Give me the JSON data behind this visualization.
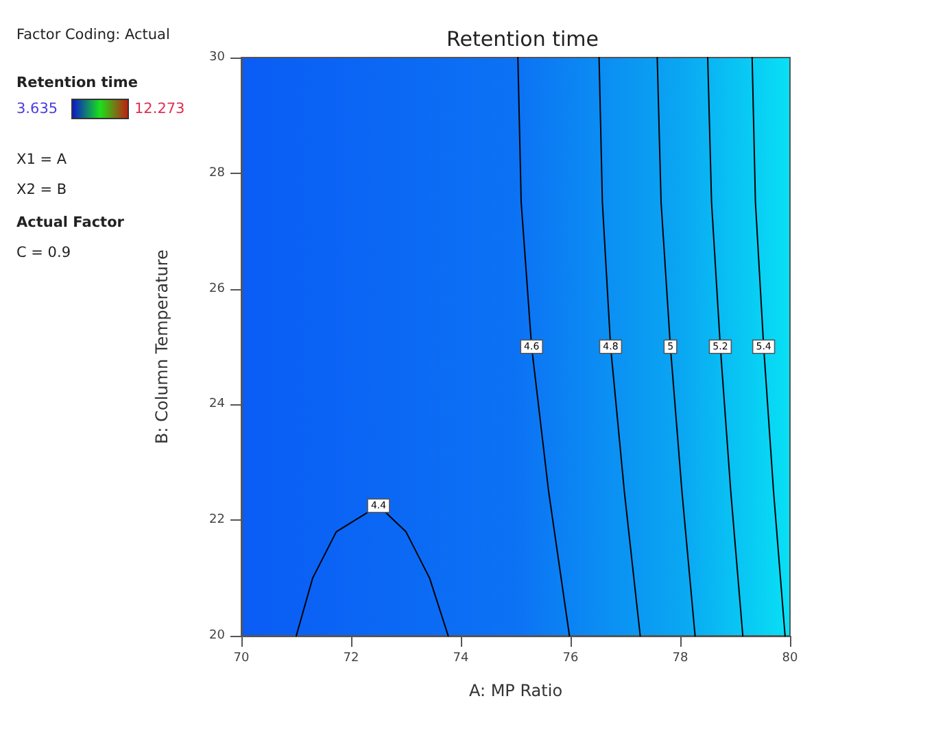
{
  "chart_data": {
    "type": "line",
    "title": "Retention time",
    "xlabel": "A: MP Ratio",
    "ylabel": "B: Column Temperature",
    "annotations": [
      "Factor Coding: Actual",
      "Retention time",
      "3.635",
      "12.273",
      "X1 = A",
      "X2 = B",
      "Actual Factor",
      "C = 0.9"
    ],
    "xlim": [
      70,
      80
    ],
    "xticks": [
      70,
      72,
      74,
      76,
      78,
      80
    ],
    "ylim": [
      20,
      30
    ],
    "yticks": [
      20,
      22,
      24,
      26,
      28,
      30
    ],
    "grid": false,
    "marker": "none",
    "line_style": "solid",
    "legend": false,
    "series": [
      {
        "name": "4.4",
        "color": "#000000",
        "x": [
          71.0,
          71.3,
          71.73,
          72.5,
          73.0,
          73.43,
          73.77
        ],
        "values": [
          20,
          21,
          21.8,
          22.25,
          21.8,
          21,
          20
        ]
      },
      {
        "name": "4.6",
        "color": "#000000",
        "x": [
          75.04,
          75.1,
          75.29,
          75.6,
          75.98
        ],
        "values": [
          30,
          27.5,
          25,
          22.5,
          20
        ]
      },
      {
        "name": "4.8",
        "color": "#000000",
        "x": [
          76.52,
          76.58,
          76.73,
          76.98,
          77.27
        ],
        "values": [
          30,
          27.5,
          25,
          22.5,
          20
        ]
      },
      {
        "name": "5",
        "color": "#000000",
        "x": [
          77.58,
          77.65,
          77.82,
          78.03,
          78.27
        ],
        "values": [
          30,
          27.5,
          25,
          22.5,
          20
        ]
      },
      {
        "name": "5.2",
        "color": "#000000",
        "x": [
          78.5,
          78.57,
          78.73,
          78.92,
          79.14
        ],
        "values": [
          30,
          27.5,
          25,
          22.5,
          20
        ]
      },
      {
        "name": "5.4",
        "color": "#000000",
        "x": [
          79.31,
          79.37,
          79.52,
          79.7,
          79.91
        ],
        "values": [
          30,
          27.5,
          25,
          22.5,
          20
        ]
      }
    ]
  }
}
